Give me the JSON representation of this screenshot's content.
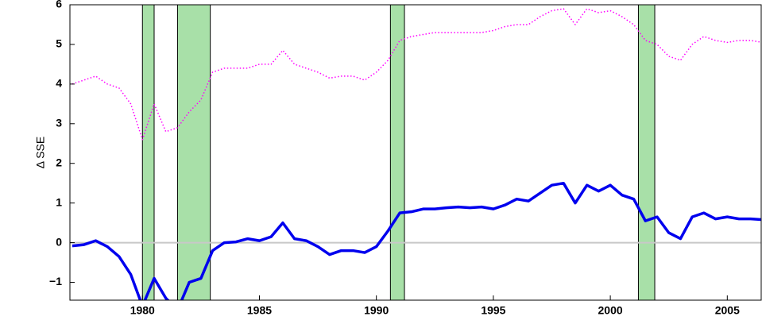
{
  "chart_data": {
    "type": "line",
    "y_label": "Δ SSE",
    "x": [
      1977,
      1977.5,
      1978,
      1978.5,
      1979,
      1979.5,
      1980,
      1980.5,
      1981,
      1981.5,
      1982,
      1982.5,
      1983,
      1983.5,
      1984,
      1984.5,
      1985,
      1985.5,
      1986,
      1986.5,
      1987,
      1987.5,
      1988,
      1988.5,
      1989,
      1989.5,
      1990,
      1990.5,
      1991,
      1991.5,
      1992,
      1992.5,
      1993,
      1993.5,
      1994,
      1994.5,
      1995,
      1995.5,
      1996,
      1996.5,
      1997,
      1997.5,
      1998,
      1998.5,
      1999,
      1999.5,
      2000,
      2000.5,
      2001,
      2001.5,
      2002,
      2002.5,
      2003,
      2003.5,
      2004,
      2004.5,
      2005,
      2005.5,
      2006,
      2006.5
    ],
    "series": [
      {
        "color": "#0000ee",
        "style": "solid",
        "values": [
          -0.08,
          -0.05,
          0.05,
          -0.1,
          -0.35,
          -0.8,
          -1.6,
          -0.9,
          -1.4,
          -1.7,
          -1.0,
          -0.9,
          -0.2,
          0,
          0.02,
          0.1,
          0.05,
          0.15,
          0.5,
          0.1,
          0.05,
          -0.1,
          -0.3,
          -0.2,
          -0.2,
          -0.25,
          -0.1,
          0.3,
          0.75,
          0.78,
          0.85,
          0.85,
          0.88,
          0.9,
          0.88,
          0.9,
          0.85,
          0.95,
          1.1,
          1.05,
          1.25,
          1.45,
          1.5,
          1.0,
          1.45,
          1.3,
          1.45,
          1.2,
          1.1,
          0.55,
          0.65,
          0.25,
          0.1,
          0.65,
          0.75,
          0.6,
          0.65,
          0.6,
          0.6,
          0.58
        ]
      },
      {
        "color": "#ff00ff",
        "style": "dotted",
        "values": [
          4.0,
          4.1,
          4.2,
          4.0,
          3.9,
          3.5,
          2.6,
          3.5,
          2.8,
          2.9,
          3.3,
          3.6,
          4.3,
          4.4,
          4.4,
          4.4,
          4.5,
          4.5,
          4.85,
          4.5,
          4.4,
          4.3,
          4.15,
          4.2,
          4.2,
          4.1,
          4.3,
          4.6,
          5.1,
          5.2,
          5.25,
          5.3,
          5.3,
          5.3,
          5.3,
          5.3,
          5.35,
          5.45,
          5.5,
          5.5,
          5.7,
          5.85,
          5.9,
          5.5,
          5.9,
          5.8,
          5.85,
          5.7,
          5.5,
          5.1,
          5.0,
          4.7,
          4.6,
          5.0,
          5.2,
          5.1,
          5.05,
          5.1,
          5.1,
          5.05
        ]
      }
    ],
    "shaded_regions": [
      [
        1980.0,
        1980.5
      ],
      [
        1981.5,
        1982.9
      ],
      [
        1990.6,
        1991.2
      ],
      [
        2001.2,
        2001.9
      ]
    ],
    "shade_color": "#a8e0a8",
    "hline": 0,
    "xlim": [
      1976.9,
      2006.45
    ],
    "xticks": [
      1980,
      1985,
      1990,
      1995,
      2000,
      2005
    ],
    "ylim": [
      -1.45,
      6
    ],
    "yticks": [
      {
        "value": -1,
        "label": "−1"
      },
      0,
      1,
      2,
      3,
      4,
      5,
      6
    ]
  }
}
